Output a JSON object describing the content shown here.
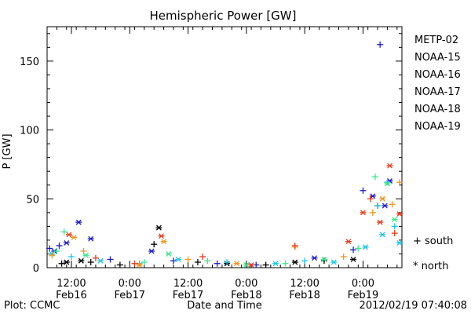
{
  "chart_data": {
    "type": "scatter",
    "title": "Hemispheric Power [GW]",
    "ylabel": "P [GW]",
    "xlabel": "Date and Time",
    "ylim": [
      0,
      175
    ],
    "yticks": [
      0,
      50,
      100,
      150
    ],
    "xlim": [
      "2012-02-16 07:00",
      "2012-02-19 08:00"
    ],
    "xticks": [
      {
        "t": "2012-02-16 12:00",
        "time": "12:00",
        "date": "Feb16"
      },
      {
        "t": "2012-02-17 00:00",
        "time": "0:00",
        "date": "Feb17"
      },
      {
        "t": "2012-02-17 12:00",
        "time": "12:00",
        "date": "Feb17"
      },
      {
        "t": "2012-02-18 00:00",
        "time": "0:00",
        "date": "Feb18"
      },
      {
        "t": "2012-02-18 12:00",
        "time": "12:00",
        "date": "Feb18"
      },
      {
        "t": "2012-02-19 00:00",
        "time": "0:00",
        "date": "Feb19"
      }
    ],
    "markers": {
      "south": "+",
      "north": "*"
    },
    "series": [
      {
        "name": "METP-02",
        "color": "#000000",
        "points": [
          [
            "2012-02-16 10:00",
            3,
            "south"
          ],
          [
            "2012-02-16 11:00",
            4,
            "north"
          ],
          [
            "2012-02-16 14:00",
            5,
            "north"
          ],
          [
            "2012-02-16 16:00",
            4,
            "south"
          ],
          [
            "2012-02-16 22:00",
            2,
            "south"
          ],
          [
            "2012-02-17 05:00",
            17,
            "south"
          ],
          [
            "2012-02-17 06:00",
            29,
            "north"
          ],
          [
            "2012-02-17 14:00",
            4,
            "south"
          ],
          [
            "2012-02-17 20:00",
            3,
            "north"
          ],
          [
            "2012-02-18 04:00",
            2,
            "south"
          ],
          [
            "2012-02-18 10:00",
            4,
            "north"
          ],
          [
            "2012-02-18 16:00",
            5,
            "south"
          ],
          [
            "2012-02-18 22:00",
            6,
            "north"
          ],
          [
            "2012-02-19 03:00",
            45,
            "south"
          ]
        ]
      },
      {
        "name": "NOAA-15",
        "color": "#1a1acd",
        "points": [
          [
            "2012-02-16 07:30",
            14,
            "south"
          ],
          [
            "2012-02-16 08:30",
            12,
            "north"
          ],
          [
            "2012-02-16 09:30",
            16,
            "south"
          ],
          [
            "2012-02-16 11:00",
            18,
            "north"
          ],
          [
            "2012-02-16 13:30",
            33,
            "north"
          ],
          [
            "2012-02-16 16:00",
            21,
            "north"
          ],
          [
            "2012-02-16 20:00",
            6,
            "south"
          ],
          [
            "2012-02-17 04:30",
            12,
            "north"
          ],
          [
            "2012-02-17 09:00",
            5,
            "south"
          ],
          [
            "2012-02-17 18:00",
            3,
            "south"
          ],
          [
            "2012-02-18 02:00",
            2,
            "south"
          ],
          [
            "2012-02-18 14:00",
            7,
            "north"
          ],
          [
            "2012-02-18 22:00",
            13,
            "south"
          ],
          [
            "2012-02-19 00:00",
            56,
            "south"
          ],
          [
            "2012-02-19 02:00",
            52,
            "north"
          ],
          [
            "2012-02-19 03:30",
            162,
            "south"
          ],
          [
            "2012-02-19 04:30",
            45,
            "north"
          ],
          [
            "2012-02-19 05:30",
            63,
            "north"
          ]
        ]
      },
      {
        "name": "NOAA-16",
        "color": "#1ec8e6",
        "points": [
          [
            "2012-02-16 08:00",
            10,
            "north"
          ],
          [
            "2012-02-16 12:00",
            8,
            "south"
          ],
          [
            "2012-02-16 18:00",
            5,
            "north"
          ],
          [
            "2012-02-17 02:00",
            3,
            "south"
          ],
          [
            "2012-02-17 10:00",
            6,
            "north"
          ],
          [
            "2012-02-17 20:00",
            4,
            "south"
          ],
          [
            "2012-02-18 06:00",
            3,
            "north"
          ],
          [
            "2012-02-18 12:00",
            5,
            "south"
          ],
          [
            "2012-02-18 18:00",
            4,
            "north"
          ],
          [
            "2012-02-19 00:30",
            15,
            "north"
          ],
          [
            "2012-02-19 03:00",
            45,
            "south"
          ],
          [
            "2012-02-19 04:00",
            24,
            "north"
          ],
          [
            "2012-02-19 05:00",
            62,
            "south"
          ],
          [
            "2012-02-19 06:30",
            30,
            "south"
          ],
          [
            "2012-02-19 07:30",
            18,
            "north"
          ]
        ]
      },
      {
        "name": "NOAA-17",
        "color": "#3ce68c",
        "points": [
          [
            "2012-02-16 09:00",
            12,
            "south"
          ],
          [
            "2012-02-16 10:30",
            26,
            "south"
          ],
          [
            "2012-02-16 15:00",
            9,
            "north"
          ],
          [
            "2012-02-17 03:00",
            4,
            "south"
          ],
          [
            "2012-02-17 08:00",
            10,
            "north"
          ],
          [
            "2012-02-17 16:00",
            5,
            "south"
          ],
          [
            "2012-02-18 00:00",
            2,
            "north"
          ],
          [
            "2012-02-18 08:00",
            3,
            "south"
          ],
          [
            "2012-02-18 16:00",
            6,
            "north"
          ],
          [
            "2012-02-18 23:00",
            14,
            "south"
          ],
          [
            "2012-02-19 02:30",
            66,
            "south"
          ],
          [
            "2012-02-19 05:00",
            61,
            "north"
          ],
          [
            "2012-02-19 06:30",
            35,
            "north"
          ]
        ]
      },
      {
        "name": "NOAA-18",
        "color": "#f0961e",
        "points": [
          [
            "2012-02-16 08:00",
            9,
            "south"
          ],
          [
            "2012-02-16 12:30",
            22,
            "north"
          ],
          [
            "2012-02-16 14:30",
            12,
            "south"
          ],
          [
            "2012-02-17 02:00",
            2,
            "north"
          ],
          [
            "2012-02-17 07:00",
            19,
            "north"
          ],
          [
            "2012-02-17 12:00",
            6,
            "south"
          ],
          [
            "2012-02-17 22:00",
            3,
            "north"
          ],
          [
            "2012-02-18 10:00",
            15,
            "south"
          ],
          [
            "2012-02-18 20:00",
            8,
            "south"
          ],
          [
            "2012-02-19 02:00",
            40,
            "south"
          ],
          [
            "2012-02-19 04:00",
            50,
            "north"
          ],
          [
            "2012-02-19 06:00",
            46,
            "south"
          ],
          [
            "2012-02-19 07:30",
            62,
            "south"
          ]
        ]
      },
      {
        "name": "NOAA-19",
        "color": "#e63c1e",
        "points": [
          [
            "2012-02-16 11:30",
            24,
            "north"
          ],
          [
            "2012-02-16 17:00",
            7,
            "south"
          ],
          [
            "2012-02-17 01:00",
            3,
            "south"
          ],
          [
            "2012-02-17 06:30",
            23,
            "north"
          ],
          [
            "2012-02-17 15:00",
            8,
            "south"
          ],
          [
            "2012-02-18 01:00",
            2,
            "north"
          ],
          [
            "2012-02-18 10:00",
            16,
            "south"
          ],
          [
            "2012-02-18 21:00",
            19,
            "north"
          ],
          [
            "2012-02-19 00:00",
            40,
            "north"
          ],
          [
            "2012-02-19 01:30",
            50,
            "south"
          ],
          [
            "2012-02-19 03:30",
            33,
            "north"
          ],
          [
            "2012-02-19 05:30",
            74,
            "north"
          ],
          [
            "2012-02-19 06:30",
            25,
            "south"
          ],
          [
            "2012-02-19 07:30",
            39,
            "north"
          ]
        ]
      }
    ]
  },
  "legend": {
    "items": [
      {
        "name": "METP-02",
        "color": "#000000"
      },
      {
        "name": "NOAA-15",
        "color": "#1a1acd"
      },
      {
        "name": "NOAA-16",
        "color": "#1ec8e6"
      },
      {
        "name": "NOAA-17",
        "color": "#3ce68c"
      },
      {
        "name": "NOAA-18",
        "color": "#f0961e"
      },
      {
        "name": "NOAA-19",
        "color": "#e63c1e"
      }
    ],
    "south_label": "+ south",
    "north_label": "* north"
  },
  "footer": {
    "left": "Plot: CCMC",
    "right": "2012/02/19 07:40:08"
  }
}
